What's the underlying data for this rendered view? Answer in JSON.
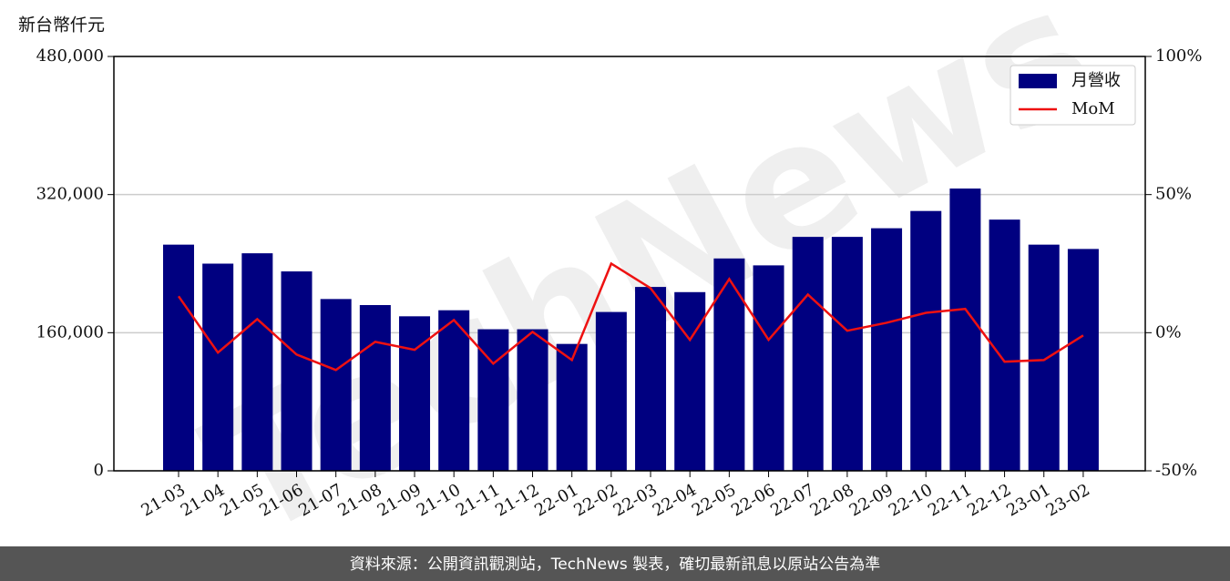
{
  "chart_data": {
    "type": "bar_line",
    "y_label": "新台幣仟元",
    "categories": [
      "21-03",
      "21-04",
      "21-05",
      "21-06",
      "21-07",
      "21-08",
      "21-09",
      "21-10",
      "21-11",
      "21-12",
      "22-01",
      "22-02",
      "22-03",
      "22-04",
      "22-05",
      "22-06",
      "22-07",
      "22-08",
      "22-09",
      "22-10",
      "22-11",
      "22-12",
      "23-01",
      "23-02"
    ],
    "series": [
      {
        "name": "月營收",
        "type": "bar",
        "color": "#000080",
        "values": [
          262000,
          240000,
          252000,
          231000,
          199000,
          192000,
          179000,
          186000,
          164000,
          164000,
          147000,
          184000,
          213000,
          207000,
          246000,
          238000,
          271000,
          271000,
          281000,
          301000,
          327000,
          291000,
          262000,
          257000
        ]
      },
      {
        "name": "MoM",
        "type": "line",
        "axis": "y2",
        "color": "#ee1111",
        "values": [
          13.2,
          -7.2,
          4.9,
          -7.9,
          -13.5,
          -3.3,
          -6.2,
          4.6,
          -11.2,
          0.3,
          -9.9,
          25,
          16.1,
          -2.6,
          19.4,
          -2.6,
          13.8,
          0.7,
          3.6,
          7.2,
          8.6,
          -10.5,
          -9.9,
          -1.0
        ]
      }
    ],
    "ylim": [
      0,
      480000
    ],
    "yticks": [
      0,
      {
        "value": 160000,
        "label": "160,000"
      },
      {
        "value": 320000,
        "label": "320,000"
      },
      {
        "value": 480000,
        "label": "480,000"
      }
    ],
    "y2lim": [
      -50,
      100
    ],
    "y2ticks": [
      {
        "value": -50,
        "label": "-50%"
      },
      {
        "value": 0,
        "label": "0%"
      },
      {
        "value": 50,
        "label": "50%"
      },
      {
        "value": 100,
        "label": "100%"
      }
    ],
    "grid": true,
    "legend": "upper right",
    "watermark": "TechNews",
    "footer": "資料來源：公開資訊觀測站，TechNews 製表，確切最新訊息以原站公告為準"
  }
}
